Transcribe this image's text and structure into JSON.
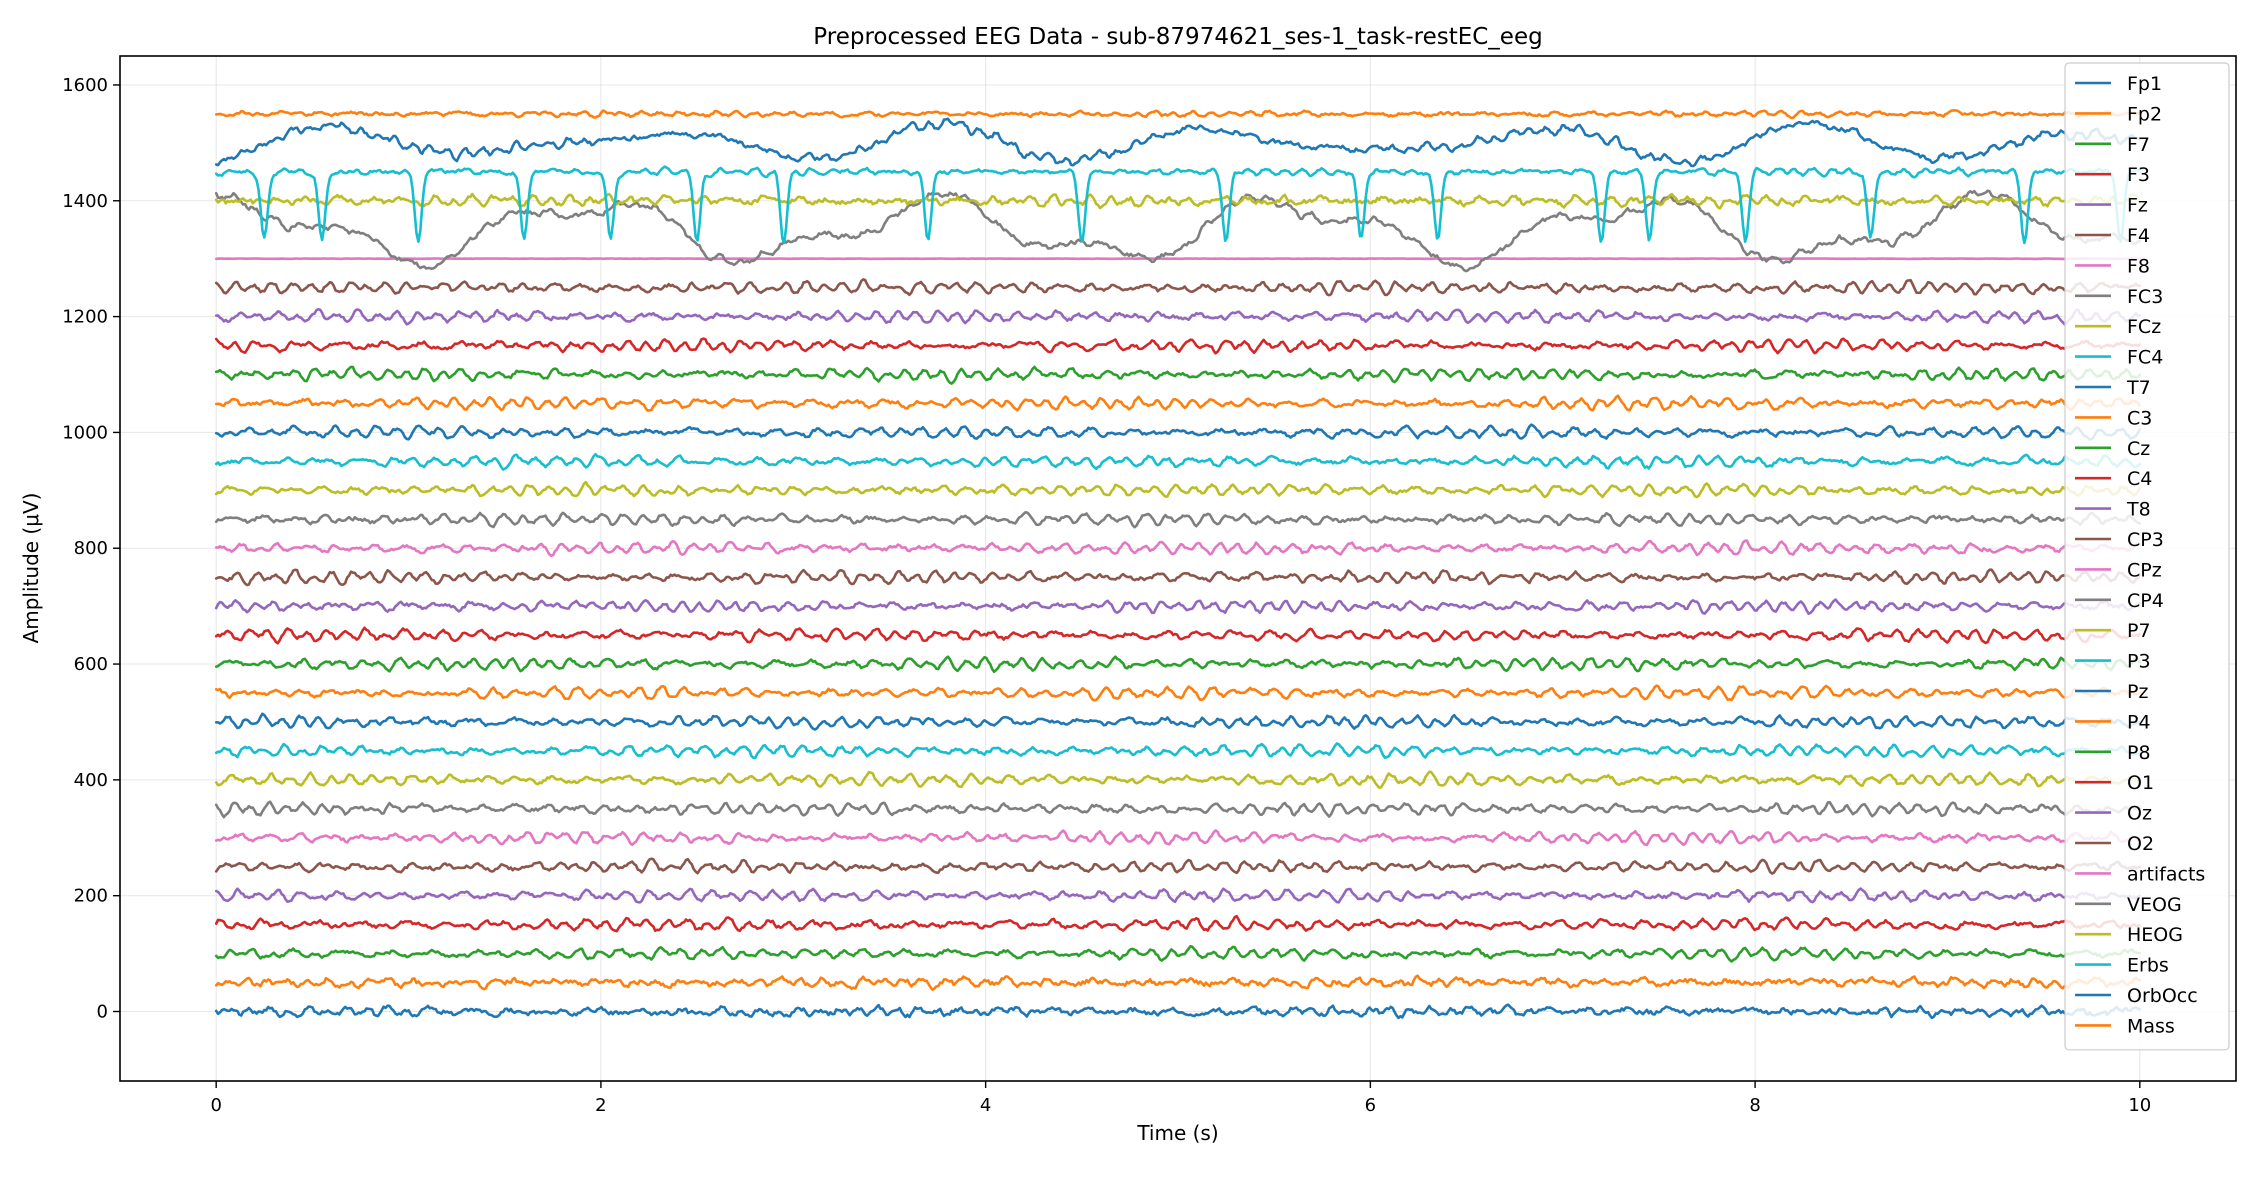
{
  "chart_data": {
    "type": "line",
    "title": "Preprocessed EEG Data - sub-87974621_ses-1_task-restEC_eeg",
    "xlabel": "Time (s)",
    "ylabel": "Amplitude (μV)",
    "xlim": [
      -0.5,
      10.5
    ],
    "ylim": [
      -120,
      1650
    ],
    "xticks": [
      0,
      2,
      4,
      6,
      8,
      10
    ],
    "xtick_labels": [
      "0",
      "2",
      "4",
      "6",
      "8",
      "10"
    ],
    "yticks": [
      0,
      200,
      400,
      600,
      800,
      1000,
      1200,
      1400,
      1600
    ],
    "ytick_labels": [
      "0",
      "200",
      "400",
      "600",
      "800",
      "1000",
      "1200",
      "1400",
      "1600"
    ],
    "grid": true,
    "legend_position": "top-right",
    "x_range": [
      0,
      10
    ],
    "series": [
      {
        "name": "Fp1",
        "offset": 1500,
        "color": "#1f77b4"
      },
      {
        "name": "Fp2",
        "offset": 1550,
        "color": "#ff7f0e"
      },
      {
        "name": "F7",
        "offset": 1100,
        "color": "#2ca02c"
      },
      {
        "name": "F3",
        "offset": 1150,
        "color": "#d62728"
      },
      {
        "name": "Fz",
        "offset": 1200,
        "color": "#9467bd"
      },
      {
        "name": "F4",
        "offset": 1250,
        "color": "#8c564b"
      },
      {
        "name": "F8",
        "offset": 1300,
        "color": "#e377c2"
      },
      {
        "name": "FC3",
        "offset": 1350,
        "color": "#7f7f7f"
      },
      {
        "name": "FCz",
        "offset": 1400,
        "color": "#bcbd22"
      },
      {
        "name": "FC4",
        "offset": 1450,
        "color": "#17becf"
      },
      {
        "name": "T7",
        "offset": 1000,
        "color": "#1f77b4"
      },
      {
        "name": "C3",
        "offset": 1050,
        "color": "#ff7f0e"
      },
      {
        "name": "Cz",
        "offset": 600,
        "color": "#2ca02c"
      },
      {
        "name": "C4",
        "offset": 650,
        "color": "#d62728"
      },
      {
        "name": "T8",
        "offset": 700,
        "color": "#9467bd"
      },
      {
        "name": "CP3",
        "offset": 750,
        "color": "#8c564b"
      },
      {
        "name": "CPz",
        "offset": 800,
        "color": "#e377c2"
      },
      {
        "name": "CP4",
        "offset": 850,
        "color": "#7f7f7f"
      },
      {
        "name": "P7",
        "offset": 900,
        "color": "#bcbd22"
      },
      {
        "name": "P3",
        "offset": 950,
        "color": "#17becf"
      },
      {
        "name": "Pz",
        "offset": 500,
        "color": "#1f77b4"
      },
      {
        "name": "P4",
        "offset": 550,
        "color": "#ff7f0e"
      },
      {
        "name": "P8",
        "offset": 100,
        "color": "#2ca02c"
      },
      {
        "name": "O1",
        "offset": 150,
        "color": "#d62728"
      },
      {
        "name": "Oz",
        "offset": 200,
        "color": "#9467bd"
      },
      {
        "name": "O2",
        "offset": 250,
        "color": "#8c564b"
      },
      {
        "name": "artifacts",
        "offset": 300,
        "color": "#e377c2"
      },
      {
        "name": "VEOG",
        "offset": 350,
        "color": "#7f7f7f"
      },
      {
        "name": "HEOG",
        "offset": 400,
        "color": "#bcbd22"
      },
      {
        "name": "Erbs",
        "offset": 450,
        "color": "#17becf"
      },
      {
        "name": "OrbOcc",
        "offset": 0,
        "color": "#1f77b4"
      },
      {
        "name": "Mass",
        "offset": 50,
        "color": "#ff7f0e"
      }
    ]
  }
}
